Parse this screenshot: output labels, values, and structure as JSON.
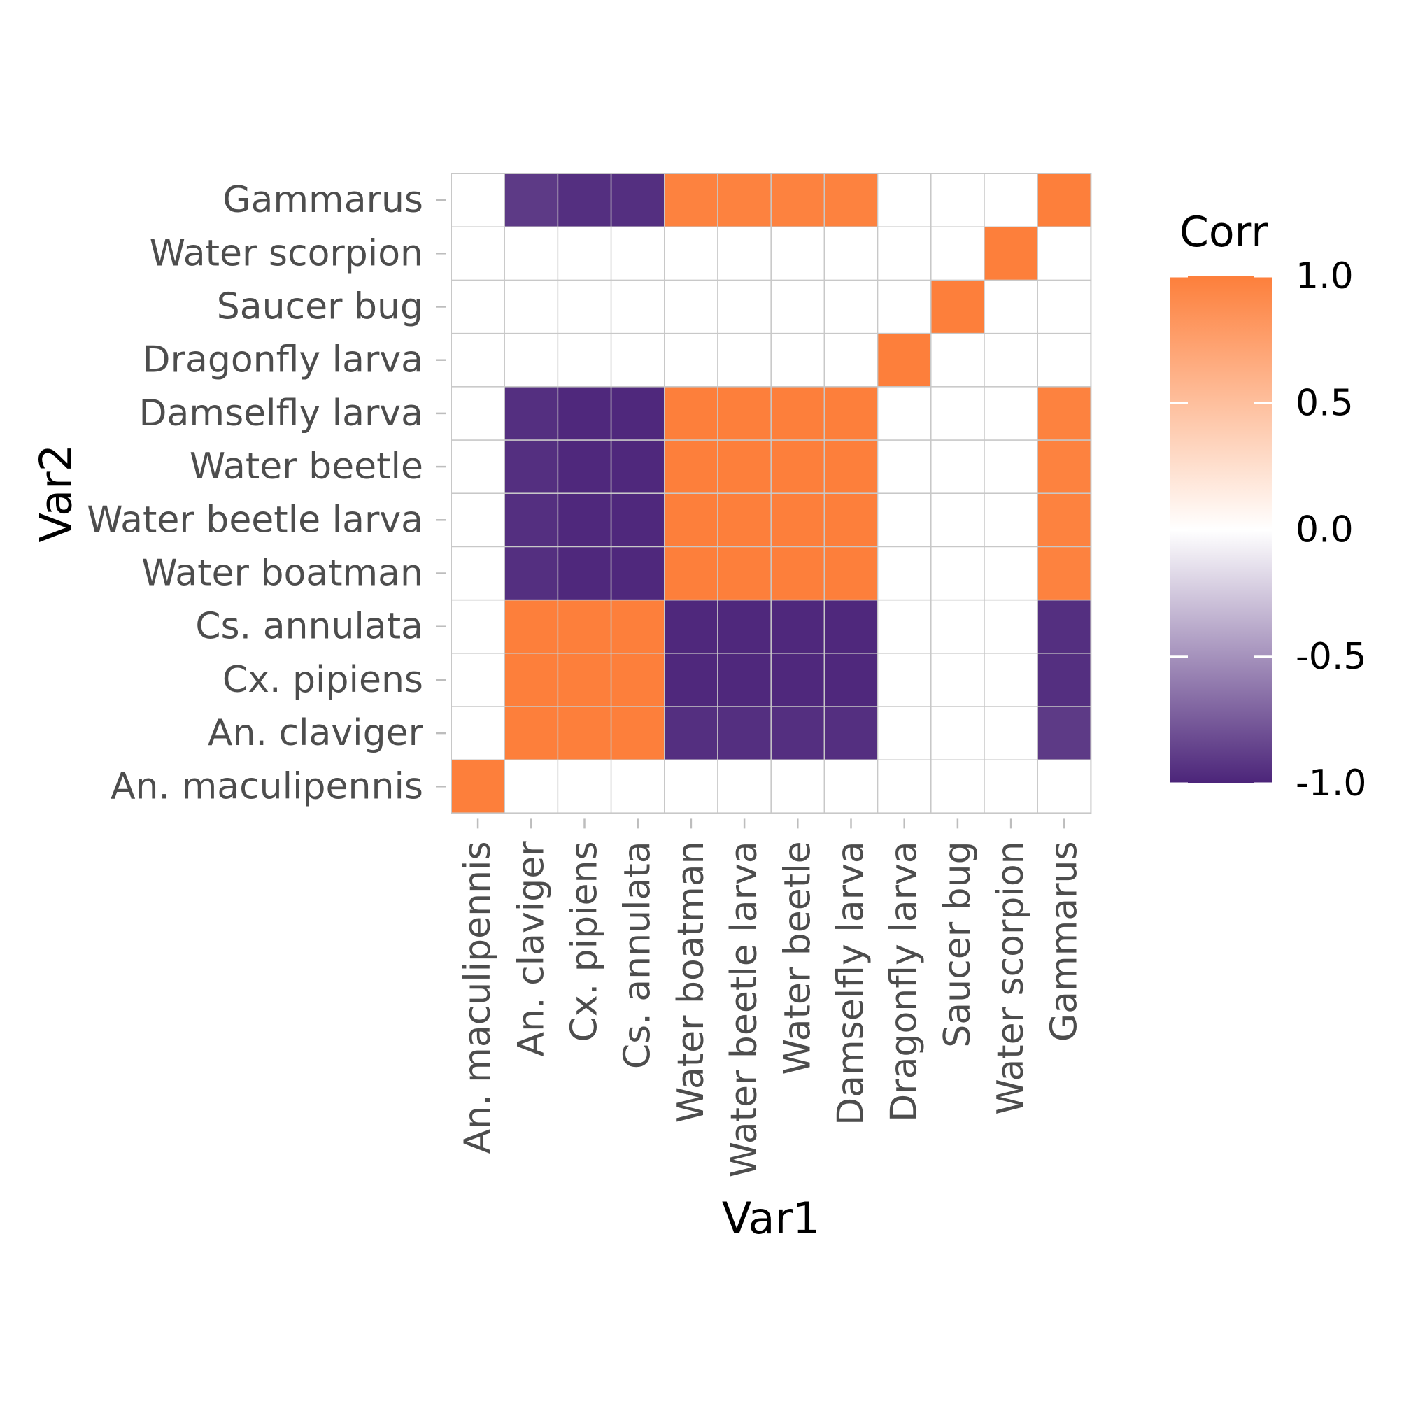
{
  "chart_data": {
    "type": "heatmap",
    "xlabel": "Var1",
    "ylabel": "Var2",
    "x_categories": [
      "An. maculipennis",
      "An. claviger",
      "Cx. pipiens",
      "Cs. annulata",
      "Water boatman",
      "Water beetle larva",
      "Water beetle",
      "Damselfly larva",
      "Dragonfly larva",
      "Saucer bug",
      "Water scorpion",
      "Gammarus"
    ],
    "y_categories": [
      "An. maculipennis",
      "An. claviger",
      "Cx. pipiens",
      "Cs. annulata",
      "Water boatman",
      "Water beetle larva",
      "Water beetle",
      "Damselfly larva",
      "Dragonfly larva",
      "Saucer bug",
      "Water scorpion",
      "Gammarus"
    ],
    "values": [
      [
        1,
        0,
        0,
        0,
        0,
        0,
        0,
        0,
        0,
        0,
        0,
        0
      ],
      [
        0,
        1,
        1,
        1,
        -0.95,
        -0.95,
        -0.95,
        -0.95,
        0,
        0,
        0,
        -0.9
      ],
      [
        0,
        1,
        1,
        1,
        -0.98,
        -0.98,
        -0.98,
        -0.98,
        0,
        0,
        0,
        -0.95
      ],
      [
        0,
        1,
        1,
        1,
        -0.98,
        -0.98,
        -0.98,
        -0.98,
        0,
        0,
        0,
        -0.95
      ],
      [
        0,
        -0.95,
        -0.98,
        -0.98,
        1,
        1,
        1,
        1,
        0,
        0,
        0,
        0.98
      ],
      [
        0,
        -0.95,
        -0.98,
        -0.98,
        1,
        1,
        1,
        1,
        0,
        0,
        0,
        0.98
      ],
      [
        0,
        -0.95,
        -0.98,
        -0.98,
        1,
        1,
        1,
        1,
        0,
        0,
        0,
        0.98
      ],
      [
        0,
        -0.95,
        -0.98,
        -0.98,
        1,
        1,
        1,
        1,
        0,
        0,
        0,
        0.98
      ],
      [
        0,
        0,
        0,
        0,
        0,
        0,
        0,
        0,
        1,
        0,
        0,
        0
      ],
      [
        0,
        0,
        0,
        0,
        0,
        0,
        0,
        0,
        0,
        1,
        0,
        0
      ],
      [
        0,
        0,
        0,
        0,
        0,
        0,
        0,
        0,
        0,
        0,
        1,
        0
      ],
      [
        0,
        -0.9,
        -0.95,
        -0.95,
        0.98,
        0.98,
        0.98,
        0.98,
        0,
        0,
        0,
        1
      ]
    ],
    "value_range": [
      -1,
      1
    ],
    "colorscale": {
      "low": "#4b2479",
      "mid": "#ffffff",
      "high": "#fd7f3b"
    },
    "grid": true,
    "legend": {
      "title": "Corr",
      "placement": "right",
      "ticks": [
        1.0,
        0.5,
        0.0,
        -0.5,
        -1.0
      ],
      "tick_labels": [
        "1.0",
        "0.5",
        "0.0",
        "-0.5",
        "-1.0"
      ]
    }
  }
}
